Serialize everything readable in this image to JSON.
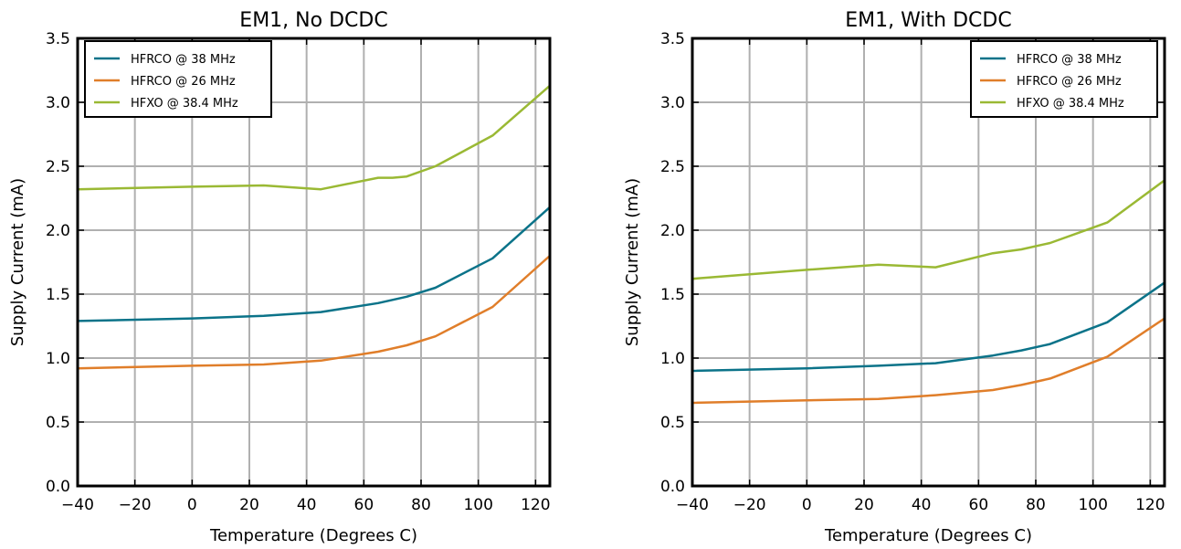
{
  "chart_data": [
    {
      "type": "line",
      "title": "EM1, No DCDC",
      "xlabel": "Temperature (Degrees C)",
      "ylabel": "Supply Current (mA)",
      "xlim": [
        -40,
        125
      ],
      "ylim": [
        0,
        3.5
      ],
      "x_ticks": [
        -40,
        -20,
        0,
        20,
        40,
        60,
        80,
        100,
        120
      ],
      "x_tick_labels": [
        "−40",
        "−20",
        "0",
        "20",
        "40",
        "60",
        "80",
        "100",
        "120"
      ],
      "y_ticks": [
        0,
        0.5,
        1,
        1.5,
        2,
        2.5,
        3,
        3.5
      ],
      "y_tick_labels": [
        "0.0",
        "0.5",
        "1.0",
        "1.5",
        "2.0",
        "2.5",
        "3.0",
        "3.5"
      ],
      "grid": true,
      "legend_position": "top-left",
      "series": [
        {
          "name": "HFRCO @ 38 MHz",
          "color": "#0b7389",
          "x": [
            -40,
            0,
            25,
            45,
            65,
            75,
            85,
            105,
            125
          ],
          "y": [
            1.29,
            1.31,
            1.33,
            1.36,
            1.43,
            1.48,
            1.55,
            1.78,
            2.18
          ]
        },
        {
          "name": "HFRCO @ 26 MHz",
          "color": "#e07e2a",
          "x": [
            -40,
            0,
            25,
            45,
            65,
            75,
            85,
            105,
            125
          ],
          "y": [
            0.92,
            0.94,
            0.95,
            0.98,
            1.05,
            1.1,
            1.17,
            1.4,
            1.8
          ]
        },
        {
          "name": "HFXO @ 38.4 MHz",
          "color": "#9ab934",
          "x": [
            -40,
            0,
            25,
            45,
            65,
            70,
            75,
            85,
            105,
            125
          ],
          "y": [
            2.32,
            2.34,
            2.35,
            2.32,
            2.41,
            2.41,
            2.42,
            2.5,
            2.74,
            3.13
          ]
        }
      ]
    },
    {
      "type": "line",
      "title": "EM1, With DCDC",
      "xlabel": "Temperature (Degrees C)",
      "ylabel": "Supply Current (mA)",
      "xlim": [
        -40,
        125
      ],
      "ylim": [
        0,
        3.5
      ],
      "x_ticks": [
        -40,
        -20,
        0,
        20,
        40,
        60,
        80,
        100,
        120
      ],
      "x_tick_labels": [
        "−40",
        "−20",
        "0",
        "20",
        "40",
        "60",
        "80",
        "100",
        "120"
      ],
      "y_ticks": [
        0,
        0.5,
        1,
        1.5,
        2,
        2.5,
        3,
        3.5
      ],
      "y_tick_labels": [
        "0.0",
        "0.5",
        "1.0",
        "1.5",
        "2.0",
        "2.5",
        "3.0",
        "3.5"
      ],
      "grid": true,
      "legend_position": "top-right",
      "series": [
        {
          "name": "HFRCO @ 38 MHz",
          "color": "#0b7389",
          "x": [
            -40,
            0,
            25,
            45,
            65,
            75,
            85,
            105,
            125
          ],
          "y": [
            0.9,
            0.92,
            0.94,
            0.96,
            1.02,
            1.06,
            1.11,
            1.28,
            1.59
          ]
        },
        {
          "name": "HFRCO @ 26 MHz",
          "color": "#e07e2a",
          "x": [
            -40,
            0,
            25,
            45,
            65,
            75,
            85,
            105,
            125
          ],
          "y": [
            0.65,
            0.67,
            0.68,
            0.71,
            0.75,
            0.79,
            0.84,
            1.01,
            1.31
          ]
        },
        {
          "name": "HFXO @ 38.4 MHz",
          "color": "#9ab934",
          "x": [
            -40,
            0,
            25,
            45,
            65,
            75,
            85,
            105,
            125
          ],
          "y": [
            1.62,
            1.69,
            1.73,
            1.71,
            1.82,
            1.85,
            1.9,
            2.06,
            2.39
          ]
        }
      ]
    }
  ]
}
